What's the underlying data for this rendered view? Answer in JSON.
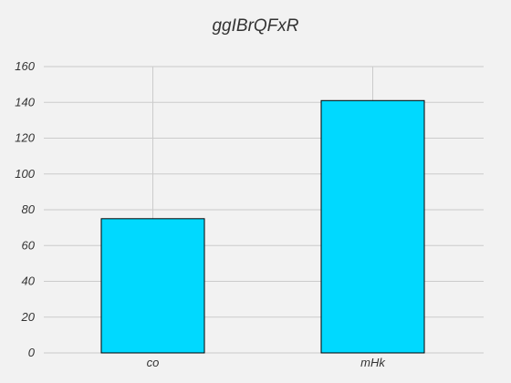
{
  "chart_data": {
    "type": "bar",
    "title": "ggIBrQFxR",
    "categories": [
      "co",
      "mHk"
    ],
    "values": [
      75,
      141
    ],
    "xlabel": "",
    "ylabel": "",
    "ylim": [
      0,
      160
    ],
    "yticks": [
      0,
      20,
      40,
      60,
      80,
      100,
      120,
      140,
      160
    ],
    "grid": true,
    "bar_color": "#00d9ff",
    "edge_color": "#000000",
    "background_color": "#f2f2f2",
    "grid_color": "#cbcbcb"
  }
}
